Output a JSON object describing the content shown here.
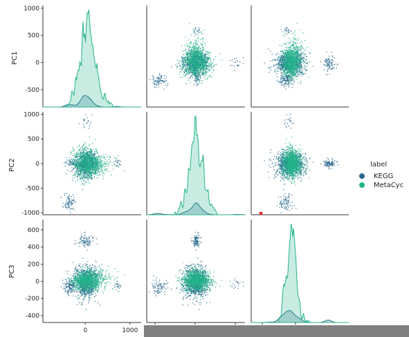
{
  "chart_data": {
    "type": "scatter",
    "kind": "pairplot",
    "variables": [
      "PC1",
      "PC2",
      "PC3"
    ],
    "axes": {
      "PC1": {
        "range": [
          -820,
          1050
        ],
        "ticks": [
          -500,
          0,
          500,
          1000
        ]
      },
      "PC2": {
        "range": [
          -1040,
          1050
        ],
        "ticks": [
          -1000,
          -500,
          0,
          500,
          1000
        ]
      },
      "PC3": {
        "range": [
          -480,
          720
        ],
        "ticks": [
          -400,
          -200,
          0,
          200,
          400,
          600
        ]
      }
    },
    "x_tick_labels": [
      "0",
      "1000"
    ],
    "x_tick_values": [
      0,
      1000
    ],
    "x_range_bottom_left": [
      -950,
      1250
    ],
    "legend": {
      "title": "label",
      "placement": "right"
    },
    "series": [
      {
        "name": "KEGG",
        "color": "#2a6a8e",
        "clusters": [
          {
            "center": [
              -10,
              0,
              -10
            ],
            "spread": [
              110,
              130,
              90
            ],
            "n": 800
          },
          {
            "center": [
              -10,
              0,
              470
            ],
            "spread": [
              80,
              40,
              40
            ],
            "n": 90
          },
          {
            "center": [
              -330,
              -780,
              -60
            ],
            "spread": [
              50,
              80,
              50
            ],
            "n": 80
          },
          {
            "center": [
              -300,
              20,
              -40
            ],
            "spread": [
              40,
              40,
              40
            ],
            "n": 40
          },
          {
            "center": [
              600,
              0,
              -60
            ],
            "spread": [
              40,
              40,
              30
            ],
            "n": 20
          },
          {
            "center": [
              -20,
              880,
              -40
            ],
            "spread": [
              60,
              60,
              30
            ],
            "n": 20
          }
        ]
      },
      {
        "name": "MetaCyc",
        "color": "#23b38a",
        "clusters": [
          {
            "center": [
              10,
              10,
              10
            ],
            "spread": [
              130,
              150,
              60
            ],
            "n": 900
          },
          {
            "center": [
              250,
              0,
              50
            ],
            "spread": [
              150,
              80,
              60
            ],
            "n": 150
          }
        ]
      }
    ],
    "highlight_point": {
      "x": -1000,
      "y": -350,
      "color": "#e03030"
    }
  },
  "labels": {
    "ylabel_row1": "PC1",
    "ylabel_row2": "PC2",
    "ylabel_row3": "PC3",
    "legend_title": "label",
    "legend_kegg": "KEGG",
    "legend_metacyc": "MetaCyc"
  }
}
